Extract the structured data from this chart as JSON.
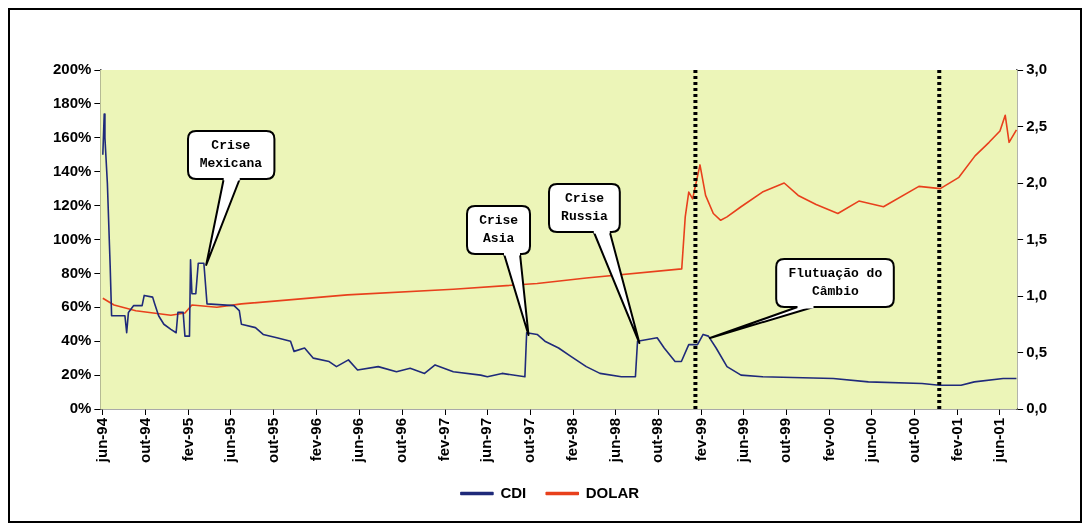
{
  "chart_data": {
    "type": "line",
    "xlim": [
      "1994-05-25",
      "2001-07-20"
    ],
    "xticks": [
      {
        "value": "1994-06",
        "label": "jun-94"
      },
      {
        "value": "1994-10",
        "label": "out-94"
      },
      {
        "value": "1995-02",
        "label": "fev-95"
      },
      {
        "value": "1995-06",
        "label": "jun-95"
      },
      {
        "value": "1995-10",
        "label": "out-95"
      },
      {
        "value": "1996-02",
        "label": "fev-96"
      },
      {
        "value": "1996-06",
        "label": "jun-96"
      },
      {
        "value": "1996-10",
        "label": "out-96"
      },
      {
        "value": "1997-02",
        "label": "fev-97"
      },
      {
        "value": "1997-06",
        "label": "jun-97"
      },
      {
        "value": "1997-10",
        "label": "out-97"
      },
      {
        "value": "1998-02",
        "label": "fev-98"
      },
      {
        "value": "1998-06",
        "label": "jun-98"
      },
      {
        "value": "1998-10",
        "label": "out-98"
      },
      {
        "value": "1999-02",
        "label": "fev-99"
      },
      {
        "value": "1999-06",
        "label": "jun-99"
      },
      {
        "value": "1999-10",
        "label": "out-99"
      },
      {
        "value": "2000-02",
        "label": "fev-00"
      },
      {
        "value": "2000-06",
        "label": "jun-00"
      },
      {
        "value": "2000-10",
        "label": "out-00"
      },
      {
        "value": "2001-02",
        "label": "fev-01"
      },
      {
        "value": "2001-06",
        "label": "jun-01"
      }
    ],
    "ylim": [
      0,
      200
    ],
    "yticks": [
      {
        "value": 0,
        "label": "0%"
      },
      {
        "value": 20,
        "label": "20%"
      },
      {
        "value": 40,
        "label": "40%"
      },
      {
        "value": 60,
        "label": "60%"
      },
      {
        "value": 80,
        "label": "80%"
      },
      {
        "value": 100,
        "label": "100%"
      },
      {
        "value": 120,
        "label": "120%"
      },
      {
        "value": 140,
        "label": "140%"
      },
      {
        "value": 160,
        "label": "160%"
      },
      {
        "value": 180,
        "label": "180%"
      },
      {
        "value": 200,
        "label": "200%"
      }
    ],
    "y2lim": [
      0,
      3
    ],
    "y2ticks": [
      {
        "value": 0,
        "label": "0,0"
      },
      {
        "value": 0.5,
        "label": "0,5"
      },
      {
        "value": 1,
        "label": "1,0"
      },
      {
        "value": 1.5,
        "label": "1,5"
      },
      {
        "value": 2,
        "label": "2,0"
      },
      {
        "value": 2.5,
        "label": "2,5"
      },
      {
        "value": 3,
        "label": "3,0"
      }
    ],
    "grid": false,
    "legend": "bottom",
    "series": [
      {
        "name": "CDI",
        "color": "#1f2a7a",
        "x": [
          "1994-06-01",
          "1994-06-05",
          "1994-06-07",
          "1994-06-14",
          "1994-06-22",
          "1994-06-26",
          "1994-08-03",
          "1994-08-08",
          "1994-08-13",
          "1994-08-28",
          "1994-09-21",
          "1994-09-27",
          "1994-10-21",
          "1994-10-27",
          "1994-11-07",
          "1994-11-22",
          "1994-12-12",
          "1994-12-27",
          "1995-01-01",
          "1995-01-16",
          "1995-01-21",
          "1995-02-03",
          "1995-02-06",
          "1995-02-10",
          "1995-02-21",
          "1995-02-28",
          "1995-03-16",
          "1995-03-25",
          "1995-06-10",
          "1995-06-25",
          "1995-07-01",
          "1995-08-10",
          "1995-09-01",
          "1995-10-10",
          "1995-11-18",
          "1995-11-28",
          "1995-12-28",
          "1996-01-22",
          "1996-03-07",
          "1996-03-28",
          "1996-05-01",
          "1996-05-27",
          "1996-07-25",
          "1996-09-15",
          "1996-10-24",
          "1996-12-04",
          "1997-01-03",
          "1997-02-24",
          "1997-05-13",
          "1997-06-01",
          "1997-07-13",
          "1997-09-16",
          "1997-09-21",
          "1997-10-21",
          "1997-11-12",
          "1997-12-21",
          "1998-01-25",
          "1998-03-10",
          "1998-04-18",
          "1998-06-18",
          "1998-07-28",
          "1998-08-03",
          "1998-09-28",
          "1998-10-18",
          "1998-11-18",
          "1998-12-06",
          "1998-12-27",
          "1999-01-21",
          "1999-02-06",
          "1999-02-21",
          "1999-03-15",
          "1999-04-15",
          "1999-05-25",
          "1999-07-25",
          "2000-02-12",
          "2000-05-22",
          "2000-10-22",
          "2000-12-10",
          "2001-02-10",
          "2001-03-20",
          "2001-06-10",
          "2001-07-18"
        ],
        "values": [
          150,
          174,
          160,
          133,
          84,
          55,
          55,
          45,
          57,
          61,
          61,
          67,
          66,
          62,
          55,
          50,
          47,
          45,
          57,
          57,
          43,
          43,
          88,
          68,
          68,
          86,
          86,
          62,
          61,
          58,
          50,
          48,
          44,
          42,
          40,
          34,
          36,
          30,
          28,
          25,
          29,
          23,
          25,
          22,
          24,
          21,
          26,
          22,
          20,
          19,
          21,
          19,
          45,
          44,
          40,
          36,
          31,
          25,
          21,
          19,
          19,
          40,
          42,
          36,
          28,
          28,
          38,
          38,
          44,
          43,
          36,
          25,
          20,
          19,
          18,
          16,
          15,
          14,
          14,
          16,
          18,
          18
        ]
      },
      {
        "name": "DOLAR",
        "color": "#e8401c",
        "axis": "y2",
        "x": [
          "1994-06-01",
          "1994-07-03",
          "1994-09-03",
          "1994-12-12",
          "1995-01-21",
          "1995-02-10",
          "1995-04-22",
          "1995-07-01",
          "1996-04-28",
          "1997-02-24",
          "1997-10-21",
          "1998-03-10",
          "1998-12-07",
          "1998-12-17",
          "1998-12-27",
          "1999-01-07",
          "1999-01-28",
          "1999-02-13",
          "1999-03-07",
          "1999-03-28",
          "1999-04-15",
          "1999-05-25",
          "1999-07-25",
          "1999-09-25",
          "1999-11-04",
          "1999-12-25",
          "2000-02-25",
          "2000-04-25",
          "2000-07-04",
          "2000-10-13",
          "2000-12-13",
          "2001-02-04",
          "2001-03-22",
          "2001-05-01",
          "2001-06-01",
          "2001-06-16",
          "2001-06-27",
          "2001-07-18"
        ],
        "values": [
          0.98,
          0.92,
          0.87,
          0.83,
          0.85,
          0.92,
          0.9,
          0.93,
          1.01,
          1.06,
          1.11,
          1.16,
          1.24,
          1.7,
          1.92,
          1.86,
          2.16,
          1.89,
          1.73,
          1.67,
          1.7,
          1.79,
          1.92,
          2.0,
          1.89,
          1.81,
          1.73,
          1.84,
          1.79,
          1.97,
          1.95,
          2.05,
          2.24,
          2.36,
          2.46,
          2.6,
          2.36,
          2.47
        ]
      }
    ],
    "ref_lines": [
      {
        "axis": "x",
        "value": "1999-01-15",
        "color": "#000000",
        "line_style": "dotted"
      },
      {
        "axis": "x",
        "value": "2000-12-10",
        "color": "#000000",
        "line_style": "dotted"
      }
    ],
    "annotations": [
      {
        "text": "Crise\nMexicana",
        "x": "1995-03-16",
        "y": 86
      },
      {
        "text": "Crise\nAsia",
        "x": "1997-09-21",
        "y": 45
      },
      {
        "text": "Crise\nRussia",
        "x": "1998-08-03",
        "y": 40
      },
      {
        "text": "Flutuação do\nCâmbio",
        "x": "1999-02-21",
        "y": 43
      }
    ]
  }
}
